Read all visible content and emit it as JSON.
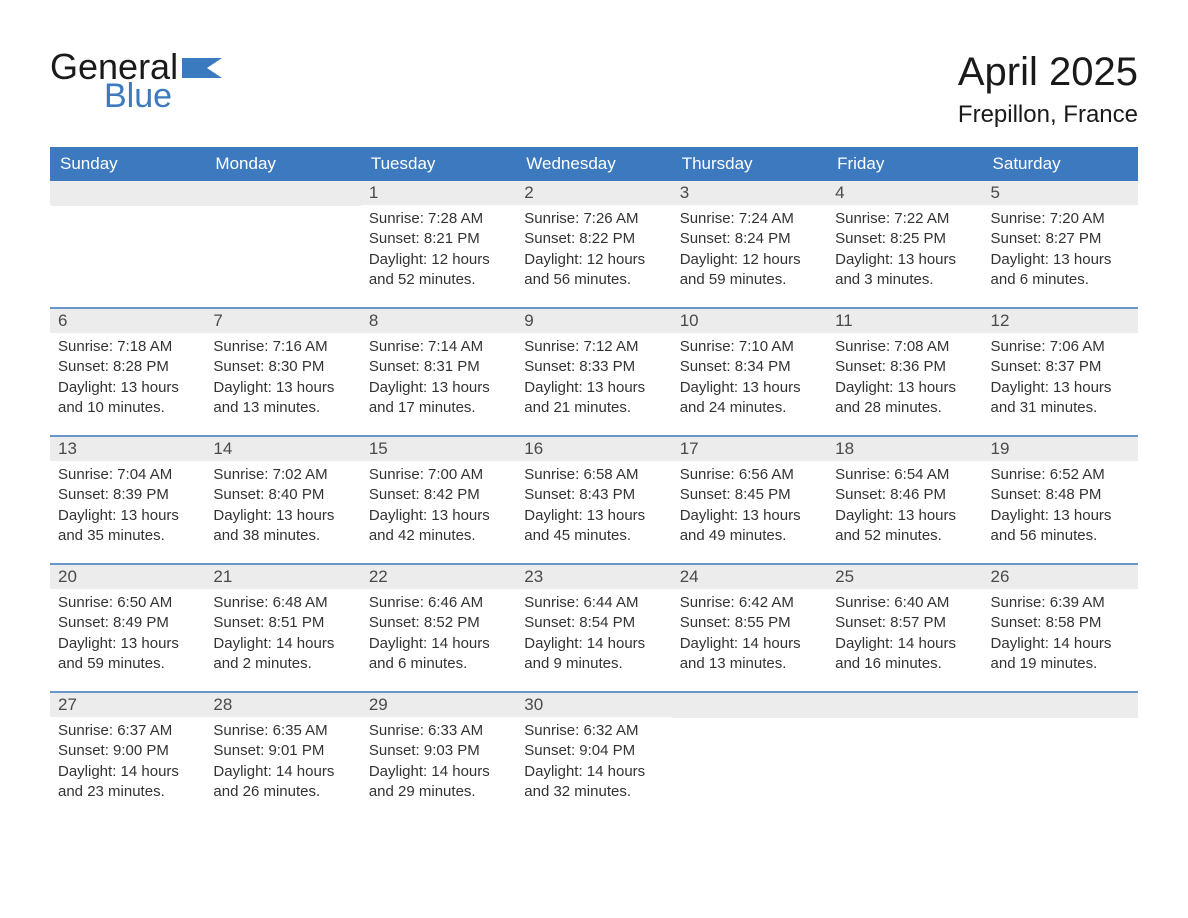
{
  "logo": {
    "word1": "General",
    "word2": "Blue",
    "flag_color": "#3c7abf"
  },
  "title": "April 2025",
  "location": "Frepillon, France",
  "header_bg": "#3d79bf",
  "header_text": "#ffffff",
  "week_border": "#6a95c6",
  "daybar_bg": "#ececec",
  "body_text": "#333333",
  "dayNames": [
    "Sunday",
    "Monday",
    "Tuesday",
    "Wednesday",
    "Thursday",
    "Friday",
    "Saturday"
  ],
  "labels": {
    "sunrise": "Sunrise:",
    "sunset": "Sunset:",
    "daylight": "Daylight:"
  },
  "weeks": [
    [
      null,
      null,
      {
        "n": "1",
        "sr": "7:28 AM",
        "ss": "8:21 PM",
        "dl": "12 hours and 52 minutes."
      },
      {
        "n": "2",
        "sr": "7:26 AM",
        "ss": "8:22 PM",
        "dl": "12 hours and 56 minutes."
      },
      {
        "n": "3",
        "sr": "7:24 AM",
        "ss": "8:24 PM",
        "dl": "12 hours and 59 minutes."
      },
      {
        "n": "4",
        "sr": "7:22 AM",
        "ss": "8:25 PM",
        "dl": "13 hours and 3 minutes."
      },
      {
        "n": "5",
        "sr": "7:20 AM",
        "ss": "8:27 PM",
        "dl": "13 hours and 6 minutes."
      }
    ],
    [
      {
        "n": "6",
        "sr": "7:18 AM",
        "ss": "8:28 PM",
        "dl": "13 hours and 10 minutes."
      },
      {
        "n": "7",
        "sr": "7:16 AM",
        "ss": "8:30 PM",
        "dl": "13 hours and 13 minutes."
      },
      {
        "n": "8",
        "sr": "7:14 AM",
        "ss": "8:31 PM",
        "dl": "13 hours and 17 minutes."
      },
      {
        "n": "9",
        "sr": "7:12 AM",
        "ss": "8:33 PM",
        "dl": "13 hours and 21 minutes."
      },
      {
        "n": "10",
        "sr": "7:10 AM",
        "ss": "8:34 PM",
        "dl": "13 hours and 24 minutes."
      },
      {
        "n": "11",
        "sr": "7:08 AM",
        "ss": "8:36 PM",
        "dl": "13 hours and 28 minutes."
      },
      {
        "n": "12",
        "sr": "7:06 AM",
        "ss": "8:37 PM",
        "dl": "13 hours and 31 minutes."
      }
    ],
    [
      {
        "n": "13",
        "sr": "7:04 AM",
        "ss": "8:39 PM",
        "dl": "13 hours and 35 minutes."
      },
      {
        "n": "14",
        "sr": "7:02 AM",
        "ss": "8:40 PM",
        "dl": "13 hours and 38 minutes."
      },
      {
        "n": "15",
        "sr": "7:00 AM",
        "ss": "8:42 PM",
        "dl": "13 hours and 42 minutes."
      },
      {
        "n": "16",
        "sr": "6:58 AM",
        "ss": "8:43 PM",
        "dl": "13 hours and 45 minutes."
      },
      {
        "n": "17",
        "sr": "6:56 AM",
        "ss": "8:45 PM",
        "dl": "13 hours and 49 minutes."
      },
      {
        "n": "18",
        "sr": "6:54 AM",
        "ss": "8:46 PM",
        "dl": "13 hours and 52 minutes."
      },
      {
        "n": "19",
        "sr": "6:52 AM",
        "ss": "8:48 PM",
        "dl": "13 hours and 56 minutes."
      }
    ],
    [
      {
        "n": "20",
        "sr": "6:50 AM",
        "ss": "8:49 PM",
        "dl": "13 hours and 59 minutes."
      },
      {
        "n": "21",
        "sr": "6:48 AM",
        "ss": "8:51 PM",
        "dl": "14 hours and 2 minutes."
      },
      {
        "n": "22",
        "sr": "6:46 AM",
        "ss": "8:52 PM",
        "dl": "14 hours and 6 minutes."
      },
      {
        "n": "23",
        "sr": "6:44 AM",
        "ss": "8:54 PM",
        "dl": "14 hours and 9 minutes."
      },
      {
        "n": "24",
        "sr": "6:42 AM",
        "ss": "8:55 PM",
        "dl": "14 hours and 13 minutes."
      },
      {
        "n": "25",
        "sr": "6:40 AM",
        "ss": "8:57 PM",
        "dl": "14 hours and 16 minutes."
      },
      {
        "n": "26",
        "sr": "6:39 AM",
        "ss": "8:58 PM",
        "dl": "14 hours and 19 minutes."
      }
    ],
    [
      {
        "n": "27",
        "sr": "6:37 AM",
        "ss": "9:00 PM",
        "dl": "14 hours and 23 minutes."
      },
      {
        "n": "28",
        "sr": "6:35 AM",
        "ss": "9:01 PM",
        "dl": "14 hours and 26 minutes."
      },
      {
        "n": "29",
        "sr": "6:33 AM",
        "ss": "9:03 PM",
        "dl": "14 hours and 29 minutes."
      },
      {
        "n": "30",
        "sr": "6:32 AM",
        "ss": "9:04 PM",
        "dl": "14 hours and 32 minutes."
      },
      null,
      null,
      null
    ]
  ]
}
